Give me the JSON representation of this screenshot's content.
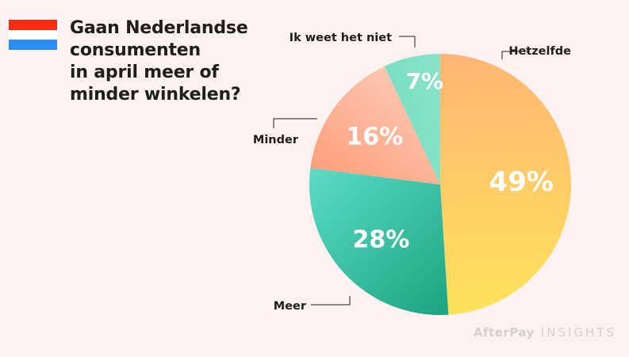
{
  "header": {
    "title_lines": [
      "Gaan Nederlandse",
      "consumenten",
      "in april meer of",
      "minder winkelen?"
    ]
  },
  "flag": {
    "colors": [
      "#ff2a14",
      "#ffffff",
      "#2b8df5"
    ],
    "icon": "netherlands-flag-icon"
  },
  "footer": {
    "brand": "AfterPay",
    "suffix": "INSIGHTS"
  },
  "chart_data": {
    "type": "pie",
    "title": "Gaan Nederlandse consumenten in april meer of minder winkelen?",
    "start_angle_deg": 0,
    "direction": "clockwise",
    "slices": [
      {
        "label": "Hetzelfde",
        "value": 49,
        "value_label": "49%",
        "colors": [
          "#ffb574",
          "#ffe35c"
        ]
      },
      {
        "label": "Meer",
        "value": 28,
        "value_label": "28%",
        "colors": [
          "#139b76",
          "#66e4d2"
        ]
      },
      {
        "label": "Minder",
        "value": 16,
        "value_label": "16%",
        "colors": [
          "#ff8a5e",
          "#fbdcd0"
        ]
      },
      {
        "label": "Ik weet het niet",
        "value": 7,
        "value_label": "7%",
        "colors": [
          "#5fd6b8",
          "#a6ecd6"
        ]
      }
    ]
  }
}
